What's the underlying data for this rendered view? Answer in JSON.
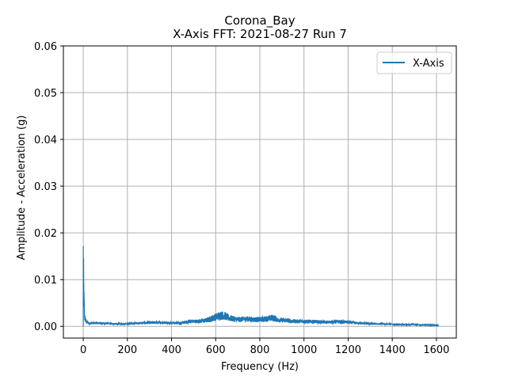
{
  "chart_data": {
    "type": "line",
    "title": "Corona_Bay",
    "subtitle": "X-Axis FFT: 2021-08-27 Run 7",
    "xlabel": "Frequency (Hz)",
    "ylabel": "Amplitude - Acceleration (g)",
    "xlim": [
      -90,
      1690
    ],
    "ylim": [
      -0.0025,
      0.06
    ],
    "xticks": [
      0,
      200,
      400,
      600,
      800,
      1000,
      1200,
      1400,
      1600
    ],
    "yticks": [
      0.0,
      0.01,
      0.02,
      0.03,
      0.04,
      0.05,
      0.06
    ],
    "xtick_labels": [
      "0",
      "200",
      "400",
      "600",
      "800",
      "1000",
      "1200",
      "1400",
      "1600"
    ],
    "ytick_labels": [
      "0.00",
      "0.01",
      "0.02",
      "0.03",
      "0.04",
      "0.05",
      "0.06"
    ],
    "grid": true,
    "legend_position": "top-right",
    "series": [
      {
        "name": "X-Axis",
        "color": "#1f77b4",
        "envelope": {
          "x": [
            0,
            1,
            3,
            6,
            10,
            15,
            25,
            40,
            60,
            80,
            100,
            150,
            200,
            240,
            280,
            320,
            360,
            400,
            440,
            470,
            480,
            520,
            560,
            600,
            620,
            640,
            660,
            700,
            740,
            780,
            820,
            860,
            880,
            920,
            960,
            1000,
            1050,
            1100,
            1150,
            1200,
            1250,
            1300,
            1350,
            1400,
            1450,
            1500,
            1550,
            1600,
            1610
          ],
          "upper": [
            0.0172,
            0.0165,
            0.009,
            0.003,
            0.002,
            0.0013,
            0.0009,
            0.0009,
            0.001,
            0.0009,
            0.0008,
            0.0007,
            0.0007,
            0.0009,
            0.001,
            0.0011,
            0.0011,
            0.001,
            0.001,
            0.0012,
            0.0015,
            0.0015,
            0.0018,
            0.0028,
            0.0033,
            0.0032,
            0.0025,
            0.002,
            0.0022,
            0.002,
            0.0021,
            0.0026,
            0.0019,
            0.0017,
            0.0015,
            0.0015,
            0.0014,
            0.0012,
            0.0014,
            0.0012,
            0.0009,
            0.0008,
            0.0007,
            0.0006,
            0.0005,
            0.0005,
            0.0004,
            0.0003,
            0.0003
          ],
          "lower": [
            0.0,
            0.0,
            0.0,
            0.0,
            0.0002,
            0.0002,
            0.0002,
            0.0002,
            0.0002,
            0.0002,
            0.0002,
            0.0002,
            0.0002,
            0.0002,
            0.0002,
            0.0002,
            0.0002,
            0.0002,
            0.0002,
            0.0002,
            0.0002,
            0.0002,
            0.0002,
            0.0003,
            0.0004,
            0.0004,
            0.0003,
            0.0003,
            0.0003,
            0.0003,
            0.0003,
            0.0003,
            0.0003,
            0.0003,
            0.0002,
            0.0002,
            0.0002,
            0.0002,
            0.0002,
            0.0002,
            0.0002,
            0.0001,
            0.0001,
            0.0001,
            0.0001,
            0.0001,
            0.0001,
            0.0001,
            0.0001
          ]
        }
      }
    ]
  }
}
